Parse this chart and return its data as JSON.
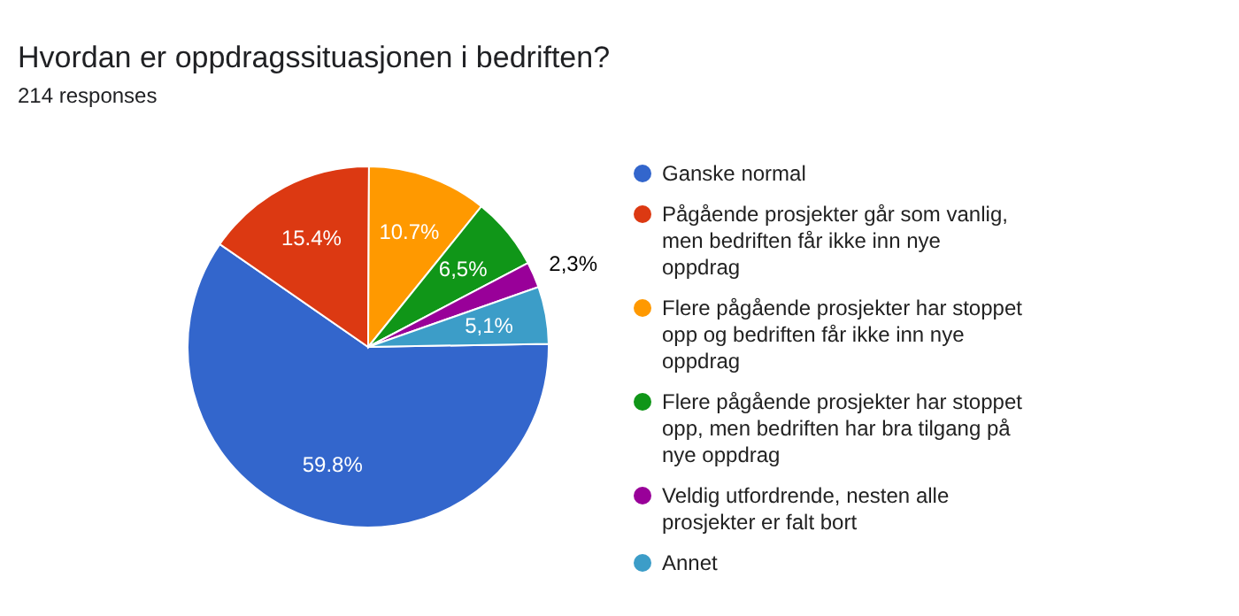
{
  "chart_data": {
    "type": "pie",
    "title": "Hvordan er oppdragssituasjonen i bedriften?",
    "subtitle": "214 responses",
    "categories": [
      "Ganske normal",
      "Pågående prosjekter går som vanlig, men bedriften får ikke inn nye oppdrag",
      "Flere pågående prosjekter har stoppet opp og bedriften får ikke inn nye oppdrag",
      "Flere pågående prosjekter har stoppet opp, men bedriften har bra tilgang på nye oppdrag",
      "Veldig utfordrende, nesten alle prosjekter er falt bort",
      "Annet"
    ],
    "values": [
      59.8,
      15.4,
      10.7,
      6.5,
      2.3,
      5.1
    ],
    "colors": [
      "#3366cc",
      "#dc3912",
      "#ff9900",
      "#109618",
      "#990099",
      "#3c9dc8"
    ],
    "value_labels": [
      "59.8%",
      "15.4%",
      "10.7%",
      "6,5%",
      "2,3%",
      "5,1%"
    ],
    "legend": "right"
  }
}
